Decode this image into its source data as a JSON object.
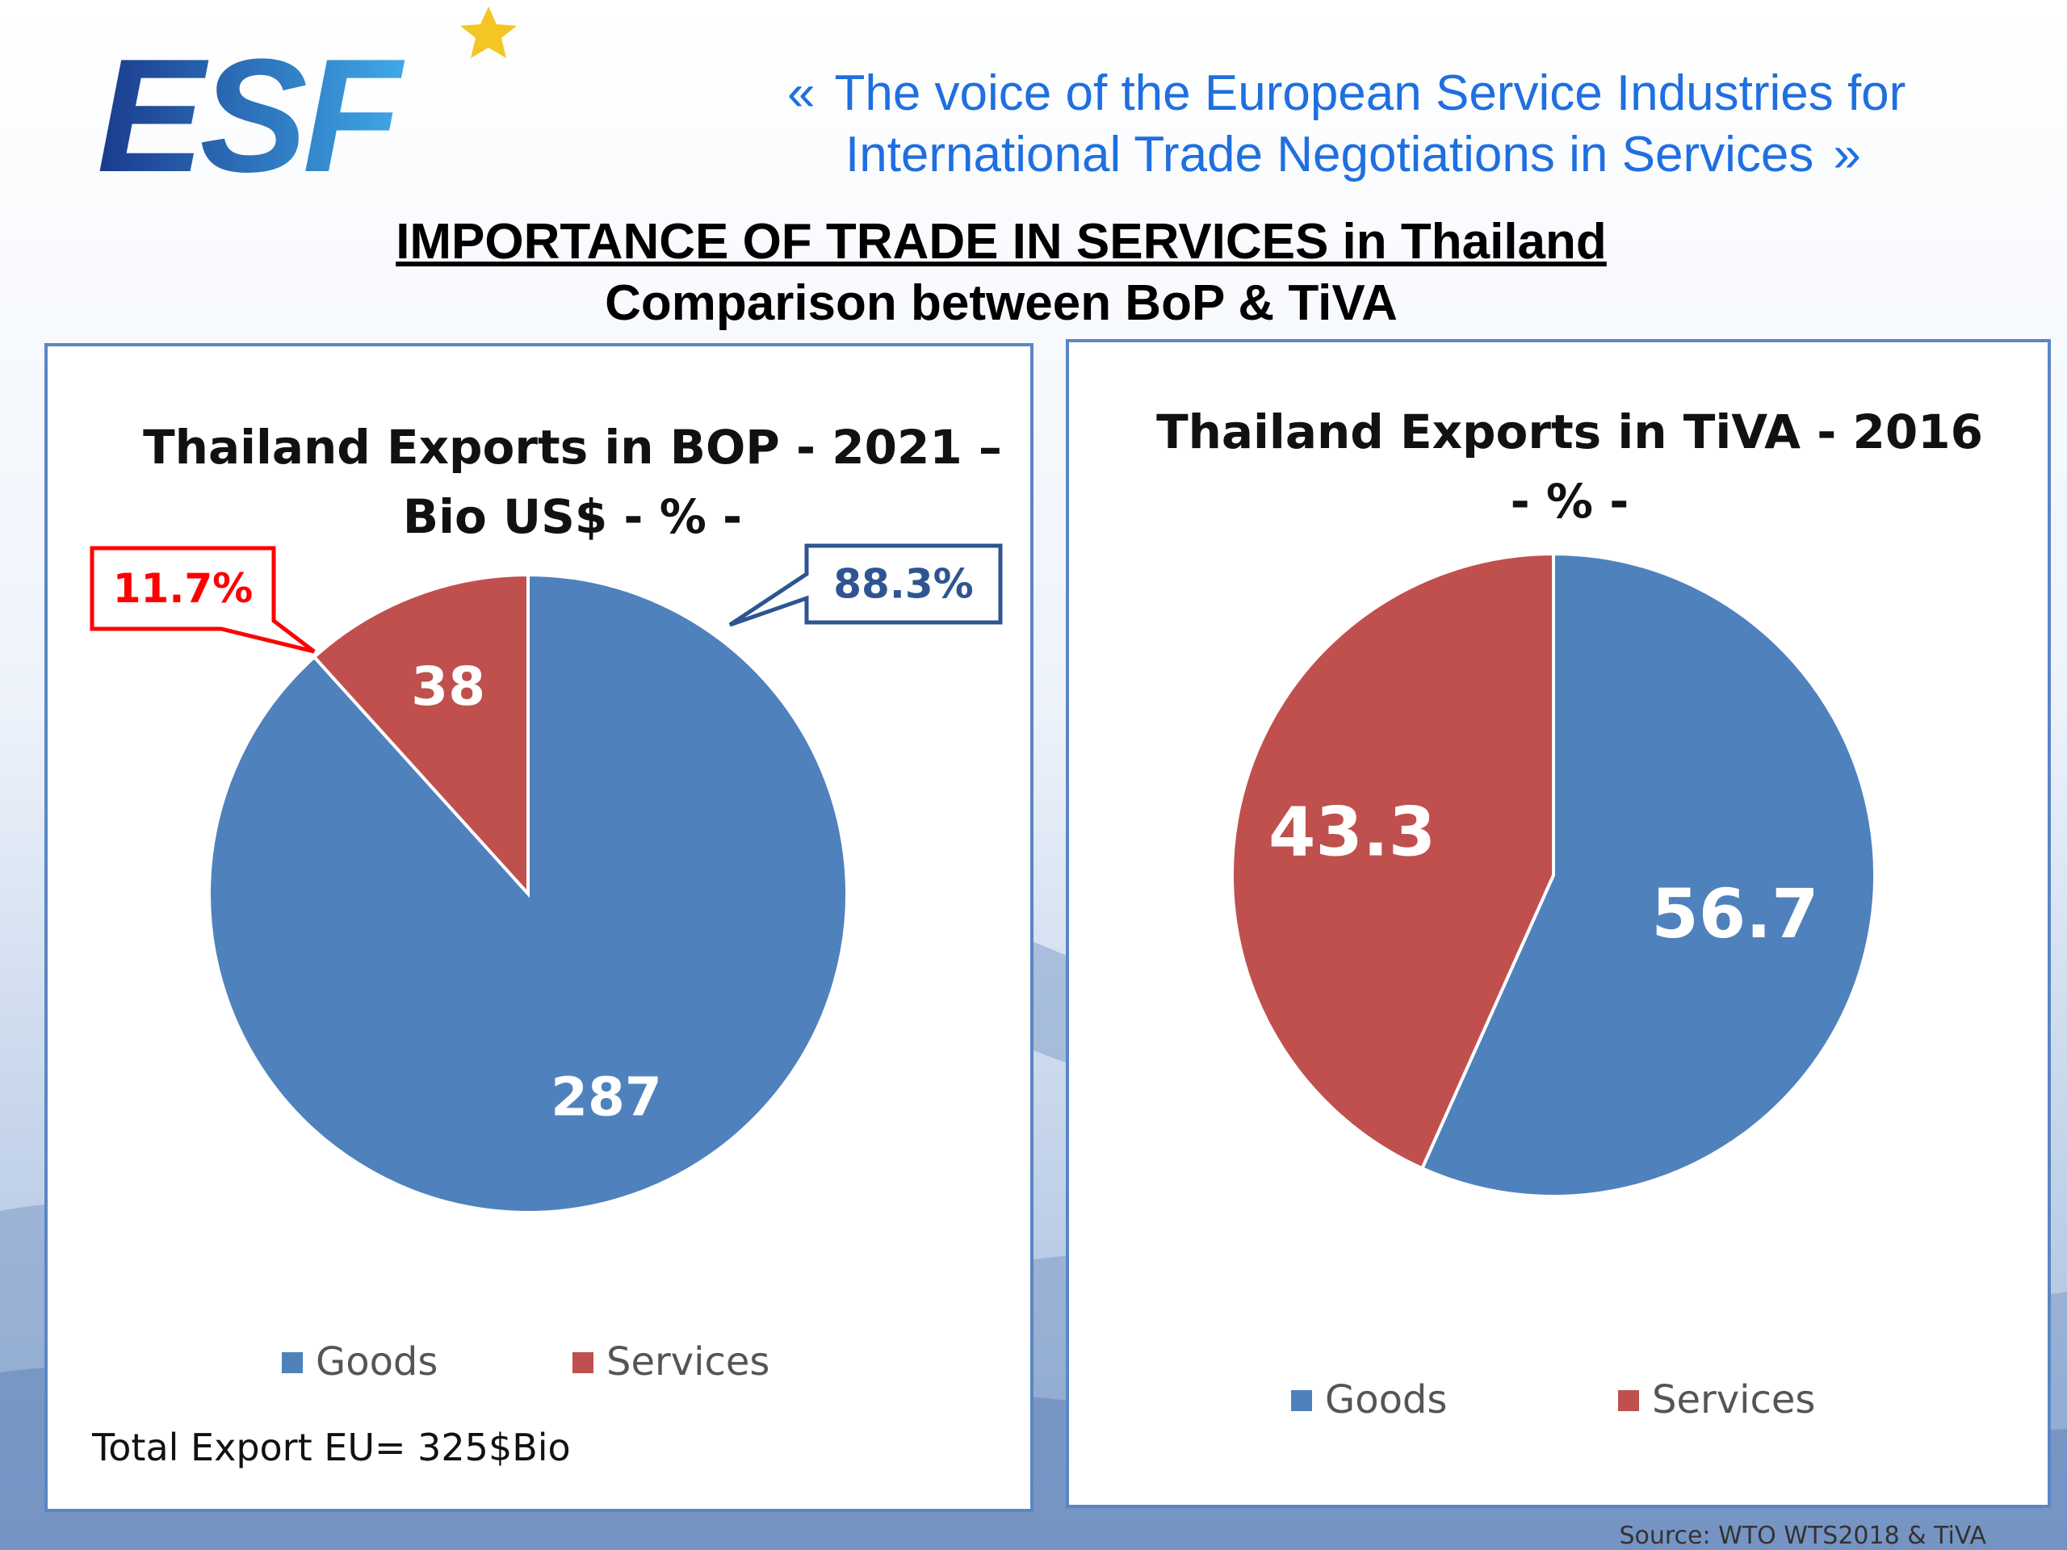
{
  "logo": {
    "text": "ESF",
    "colors": {
      "dark": "#1b3a8c",
      "light": "#3fa9e8",
      "star": "#f3c623"
    }
  },
  "tagline": {
    "open_quote": "«",
    "line1": "The voice of the European Service Industries for",
    "line2": "International Trade Negotiations in Services",
    "close_quote": "»",
    "color": "#1f6fe0"
  },
  "title": {
    "line1": "IMPORTANCE OF TRADE IN SERVICES in Thailand",
    "line2": "Comparison between BoP & TiVA"
  },
  "chart_data": [
    {
      "type": "pie",
      "title_lines": [
        "Thailand Exports in BOP - 2021 –",
        "Bio US$ - % -"
      ],
      "categories": [
        "Goods",
        "Services"
      ],
      "values": [
        287,
        38
      ],
      "data_labels": [
        "287",
        "38"
      ],
      "colors": [
        "#4f81bd",
        "#c0504d"
      ],
      "callouts": [
        {
          "category": "Services",
          "text": "11.7%",
          "color": "#ff0000"
        },
        {
          "category": "Goods",
          "text": "88.3%",
          "color": "#2e5591"
        }
      ],
      "legend": {
        "position": "bottom",
        "entries": [
          "Goods",
          "Services"
        ]
      },
      "note": "Total Export EU= 325$Bio"
    },
    {
      "type": "pie",
      "title_lines": [
        "Thailand Exports in TiVA - 2016",
        "- % -"
      ],
      "categories": [
        "Goods",
        "Services"
      ],
      "values": [
        56.7,
        43.3
      ],
      "data_labels": [
        "56.7",
        "43.3"
      ],
      "colors": [
        "#4f81bd",
        "#c0504d"
      ],
      "legend": {
        "position": "bottom",
        "entries": [
          "Goods",
          "Services"
        ]
      }
    }
  ],
  "source": "Source: WTO WTS2018 & TiVA"
}
